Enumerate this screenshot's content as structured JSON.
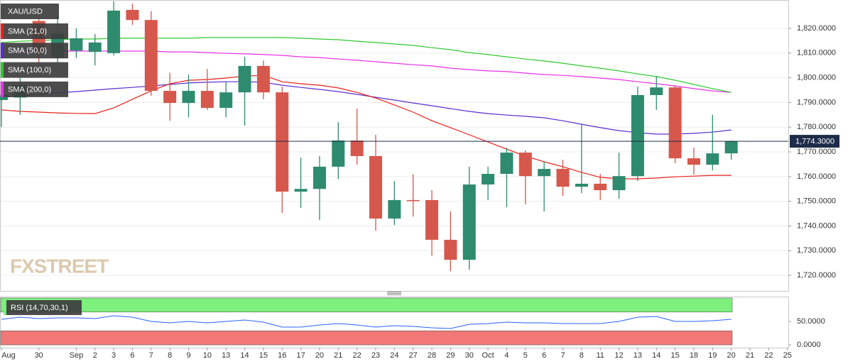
{
  "chart_data": [
    {
      "type": "candlestick",
      "title": "XAU/USD",
      "watermark": "FXSTREET",
      "categories": [
        "Aug",
        null,
        "30",
        null,
        "Sep",
        "2",
        "3",
        "6",
        "7",
        "8",
        "9",
        "10",
        "13",
        "14",
        "15",
        "16",
        "17",
        "20",
        "21",
        "22",
        "23",
        "24",
        "27",
        "28",
        "29",
        "30",
        "Oct",
        "4",
        "5",
        "6",
        "7",
        "8",
        "11",
        "12",
        "13",
        "14",
        "15",
        "18",
        "19",
        "20",
        "21",
        "22",
        "25"
      ],
      "open": [
        1791,
        1792,
        1823,
        1808,
        1811,
        1810.5,
        1810,
        1827.5,
        1823.4,
        1794.7,
        1789.8,
        1794.7,
        1787.8,
        1794.1,
        1804.8,
        1794.1,
        1753.9,
        1755,
        1764,
        1774.6,
        1768.3,
        1743,
        1750.5,
        1750.5,
        1734.4,
        1726.3,
        1756.8,
        1761.1,
        1769.7,
        1760.2,
        1763.1,
        1755.9,
        1757.1,
        1754.5,
        1760.2,
        1793,
        1796.1,
        1767.4,
        1764.8,
        1769.4,
        null,
        null,
        null
      ],
      "high": [
        1795,
        1800,
        1824,
        1825,
        1820,
        1817.7,
        1831,
        1830,
        1827,
        1802,
        1801.3,
        1803.6,
        1798.4,
        1808.5,
        1807,
        1796.4,
        1767.7,
        1768.3,
        1782,
        1787.5,
        1776.9,
        1758.2,
        1761,
        1754.5,
        1745.9,
        1764,
        1764,
        1771.7,
        1770.6,
        1766,
        1766.8,
        1781.2,
        1761.1,
        1769.7,
        1796.4,
        1800.5,
        1797,
        1771.7,
        1785,
        1774.6,
        null,
        null,
        null
      ],
      "low": [
        1780,
        1785,
        1806,
        1806,
        1808,
        1805,
        1809,
        1821.4,
        1792.7,
        1782.6,
        1784,
        1787,
        1784,
        1780.6,
        1791.3,
        1745.3,
        1747.3,
        1742.4,
        1759,
        1764.8,
        1738.1,
        1740.4,
        1743.8,
        1728,
        1721.7,
        1722.3,
        1750.5,
        1747.6,
        1748.7,
        1745.9,
        1752.2,
        1753.3,
        1750.5,
        1751,
        1758.2,
        1787,
        1765.4,
        1760.8,
        1762.5,
        1766.8,
        null,
        null,
        null
      ],
      "close": [
        1793,
        1797,
        1810,
        1818,
        1816,
        1814.3,
        1827.2,
        1823.4,
        1794.7,
        1789.8,
        1794.7,
        1787.8,
        1794.1,
        1804.8,
        1794.1,
        1753.9,
        1755,
        1764,
        1774.6,
        1768.3,
        1743,
        1750.5,
        1750.3,
        1734.4,
        1726.3,
        1756.8,
        1761.1,
        1769.7,
        1760.2,
        1763.1,
        1755.9,
        1757.1,
        1754.5,
        1760.2,
        1793,
        1796.1,
        1767.4,
        1764.8,
        1769.4,
        1774.3,
        null,
        null,
        null
      ],
      "up_color": "#2e8b6e",
      "down_color": "#d6574b",
      "series": [
        {
          "name": "SMA (21,0)",
          "color": "#e8211b",
          "values": [
            1787.0,
            1786.4,
            1786.1,
            1785.8,
            1785.6,
            1785.5,
            1787.8,
            1791.3,
            1794.7,
            1797.6,
            1799.0,
            1799.3,
            1799.9,
            1800.7,
            1801.0,
            1798.4,
            1797.6,
            1797.0,
            1795.9,
            1794.1,
            1791.8,
            1789.0,
            1786.1,
            1782.6,
            1779.8,
            1776.9,
            1774.0,
            1771.1,
            1768.3,
            1766.0,
            1764.0,
            1761.7,
            1759.7,
            1759.1,
            1759.1,
            1759.4,
            1759.9,
            1760.2,
            1760.5,
            1760.5,
            null,
            null,
            null
          ]
        },
        {
          "name": "SMA (50,0)",
          "color": "#5b2cd1",
          "values": [
            1792.1,
            1792.7,
            1793.3,
            1793.9,
            1794.4,
            1795.0,
            1795.6,
            1796.1,
            1796.7,
            1797.3,
            1797.9,
            1798.2,
            1798.4,
            1798.4,
            1798.2,
            1797.0,
            1796.1,
            1795.3,
            1794.4,
            1793.3,
            1792.1,
            1791.0,
            1789.8,
            1788.7,
            1787.5,
            1786.4,
            1785.5,
            1784.9,
            1784.4,
            1783.8,
            1782.6,
            1781.2,
            1779.8,
            1778.6,
            1777.8,
            1777.2,
            1777.2,
            1777.5,
            1778.0,
            1778.9,
            null,
            null,
            null
          ]
        },
        {
          "name": "SMA (100,0)",
          "color": "#2fc92f",
          "values": [
            1814.3,
            1814.8,
            1815.1,
            1815.4,
            1815.7,
            1815.7,
            1816.0,
            1816.0,
            1816.0,
            1816.0,
            1816.0,
            1816.3,
            1816.3,
            1816.3,
            1816.3,
            1816.3,
            1816.0,
            1815.7,
            1815.4,
            1814.8,
            1814.3,
            1813.7,
            1813.1,
            1812.2,
            1811.4,
            1810.2,
            1809.4,
            1808.5,
            1807.6,
            1806.8,
            1805.9,
            1804.8,
            1803.9,
            1802.8,
            1801.6,
            1800.5,
            1799.0,
            1797.3,
            1795.6,
            1794.1,
            null,
            null,
            null
          ]
        },
        {
          "name": "SMA (200,0)",
          "color": "#e830e8",
          "values": [
            1810.8,
            1810.8,
            1810.8,
            1810.8,
            1810.8,
            1810.8,
            1810.8,
            1810.8,
            1810.8,
            1810.5,
            1810.5,
            1810.2,
            1809.9,
            1809.7,
            1809.4,
            1809.1,
            1808.5,
            1808.2,
            1807.6,
            1807.1,
            1806.5,
            1805.9,
            1805.3,
            1804.8,
            1803.9,
            1803.3,
            1802.8,
            1802.5,
            1801.9,
            1801.3,
            1801.0,
            1800.5,
            1799.9,
            1799.3,
            1798.4,
            1797.6,
            1796.7,
            1795.6,
            1794.7,
            1794.1,
            null,
            null,
            null
          ]
        }
      ],
      "last_price": {
        "value": 1774.3,
        "label": "1,774.3000"
      },
      "ylim": [
        1713.7,
        1831.5
      ],
      "yticks": [
        {
          "value": 1720,
          "label": "1,720.0000"
        },
        {
          "value": 1730,
          "label": "1,730.0000"
        },
        {
          "value": 1740,
          "label": "1,740.0000"
        },
        {
          "value": 1750,
          "label": "1,750.0000"
        },
        {
          "value": 1760,
          "label": "1,760.0000"
        },
        {
          "value": 1770,
          "label": "1,770.0000"
        },
        {
          "value": 1780,
          "label": "1,780.0000"
        },
        {
          "value": 1790,
          "label": "1,790.0000"
        },
        {
          "value": 1800,
          "label": "1,800.0000"
        },
        {
          "value": 1810,
          "label": "1,810.0000"
        },
        {
          "value": 1820,
          "label": "1,820.0000"
        }
      ],
      "grid": true
    },
    {
      "type": "line",
      "series": [
        {
          "name": "RSI (14,70,30,1)",
          "color": "#2962ff",
          "values": [
            54.5,
            59.1,
            56.1,
            57.6,
            57.6,
            56.1,
            62.1,
            59.1,
            50,
            47,
            50,
            47,
            50,
            53,
            48.5,
            37.9,
            37.9,
            42.4,
            45.5,
            42.4,
            37.9,
            40.9,
            39.4,
            36.4,
            34.8,
            43.9,
            45.5,
            48.5,
            47,
            47,
            45.5,
            45.5,
            45.5,
            50,
            59.1,
            60.6,
            50,
            50,
            51.5,
            54.5,
            null,
            null,
            null
          ]
        }
      ],
      "bands": [
        {
          "range": [
            70,
            100
          ],
          "color": "#7df07d"
        },
        {
          "range": [
            0,
            30
          ],
          "color": "#f27878"
        }
      ],
      "ylim": [
        -6,
        103
      ],
      "yticks": [
        {
          "value": 0,
          "label": "0.0000"
        },
        {
          "value": 50,
          "label": "50.0000"
        }
      ]
    }
  ]
}
